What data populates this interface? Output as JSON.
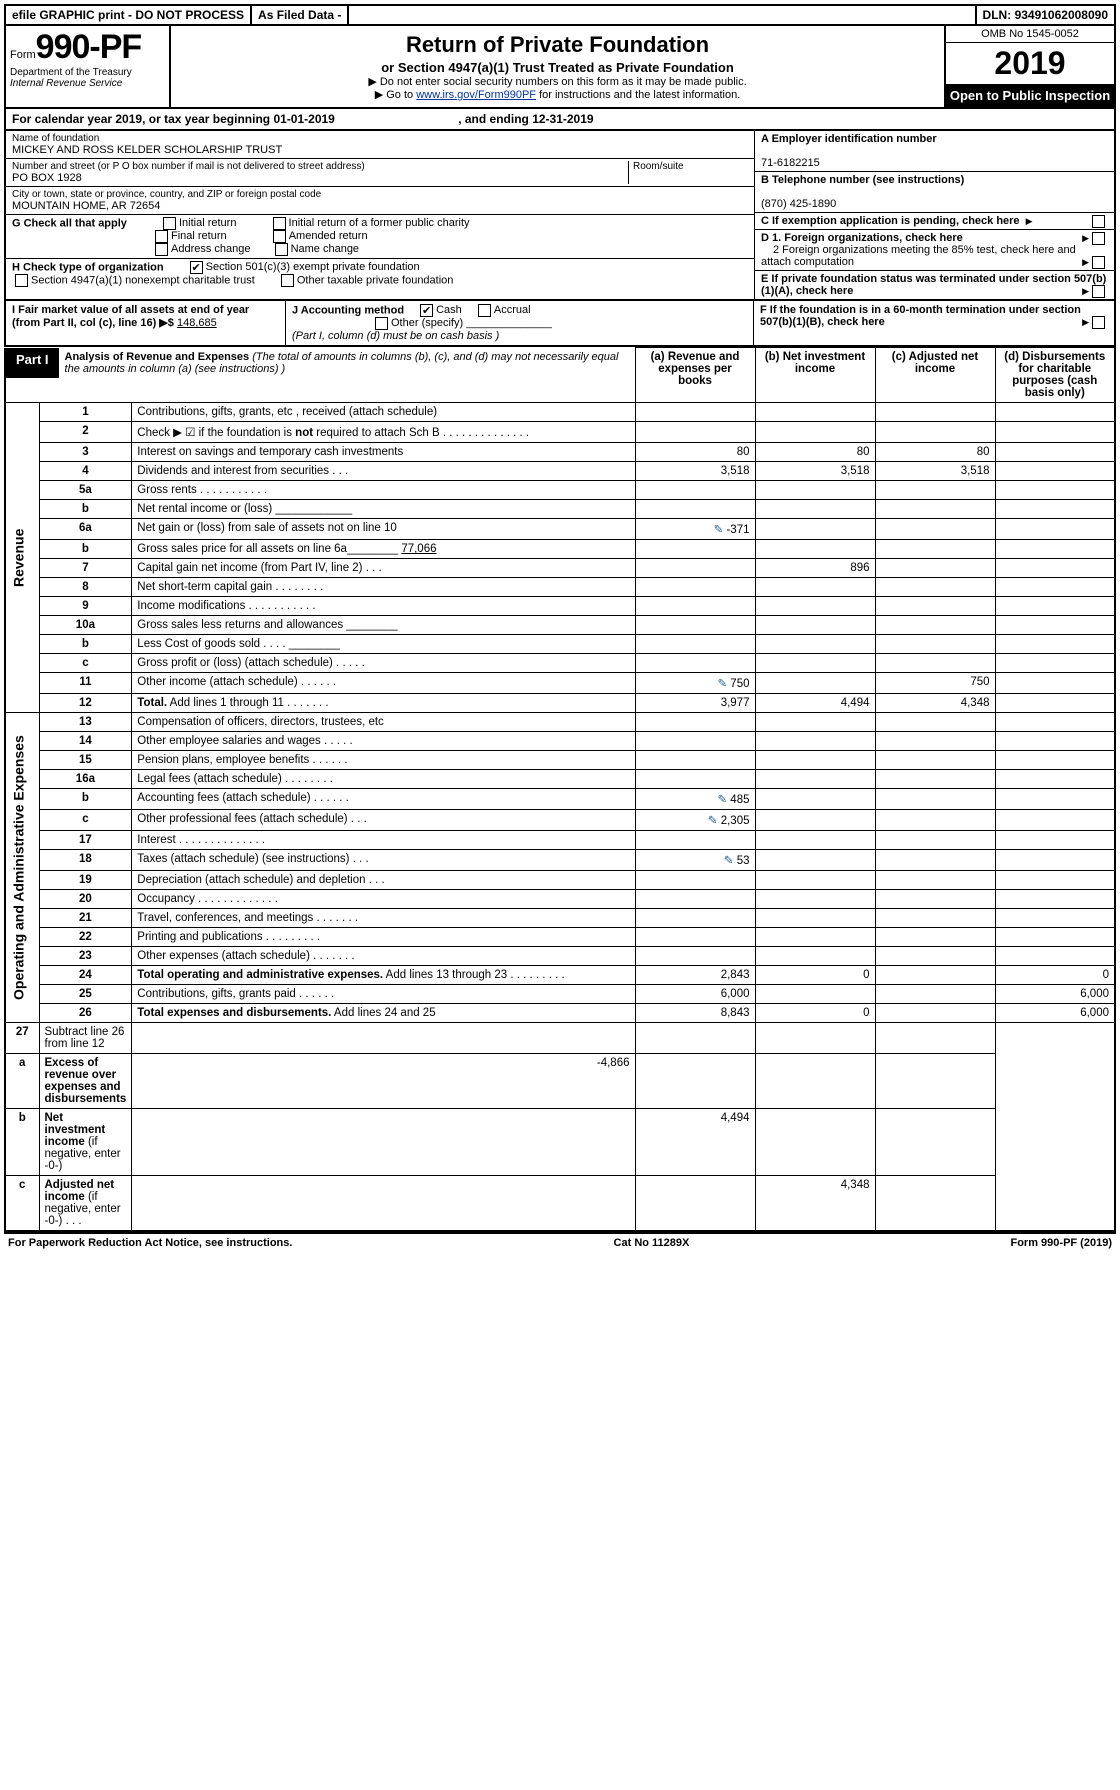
{
  "topbar": {
    "efile": "efile GRAPHIC print - DO NOT PROCESS",
    "asfiled": "As Filed Data -",
    "dln_lbl": "DLN:",
    "dln": "93491062008090"
  },
  "header": {
    "form_prefix": "Form",
    "form_no": "990-PF",
    "dept": "Department of the Treasury",
    "irs": "Internal Revenue Service",
    "title": "Return of Private Foundation",
    "subtitle": "or Section 4947(a)(1) Trust Treated as Private Foundation",
    "note1": "▶ Do not enter social security numbers on this form as it may be made public.",
    "note2_pre": "▶ Go to ",
    "note2_link": "www.irs.gov/Form990PF",
    "note2_post": " for instructions and the latest information.",
    "omb": "OMB No 1545-0052",
    "year": "2019",
    "open": "Open to Public Inspection"
  },
  "cyline": {
    "pre": "For calendar year 2019, or tax year beginning ",
    "begin": "01-01-2019",
    "mid": " , and ending ",
    "end": "12-31-2019"
  },
  "info": {
    "name_lbl": "Name of foundation",
    "name": "MICKEY AND ROSS KELDER SCHOLARSHIP TRUST",
    "addr_lbl": "Number and street (or P O  box number if mail is not delivered to street address)",
    "addr": "PO BOX 1928",
    "room_lbl": "Room/suite",
    "city_lbl": "City or town, state or province, country, and ZIP or foreign postal code",
    "city": "MOUNTAIN HOME, AR  72654",
    "A_lbl": "A Employer identification number",
    "A_val": "71-6182215",
    "B_lbl": "B Telephone number (see instructions)",
    "B_val": "(870) 425-1890",
    "C_lbl": "C If exemption application is pending, check here",
    "G_lbl": "G Check all that apply",
    "G_opts": [
      "Initial return",
      "Initial return of a former public charity",
      "Final return",
      "Amended return",
      "Address change",
      "Name change"
    ],
    "H_lbl": "H Check type of organization",
    "H_1": "Section 501(c)(3) exempt private foundation",
    "H_2": "Section 4947(a)(1) nonexempt charitable trust",
    "H_3": "Other taxable private foundation",
    "D1": "D 1. Foreign organizations, check here",
    "D2": "2 Foreign organizations meeting the 85% test, check here and attach computation",
    "E": "E  If private foundation status was terminated under section 507(b)(1)(A), check here",
    "F": "F  If the foundation is in a 60-month termination under section 507(b)(1)(B), check here",
    "I_lbl": "I Fair market value of all assets at end of year (from Part II, col  (c), line 16) ▶$ ",
    "I_val": "148,685",
    "J_lbl": "J Accounting method",
    "J_cash": "Cash",
    "J_accrual": "Accrual",
    "J_other": "Other (specify)",
    "J_note": "(Part I, column (d) must be on cash basis )"
  },
  "part1": {
    "tag": "Part I",
    "title": "Analysis of Revenue and Expenses",
    "note": " (The total of amounts in columns (b), (c), and (d) may not necessarily equal the amounts in column (a) (see instructions) )",
    "cols": {
      "a": "(a) Revenue and expenses per books",
      "b": "(b) Net investment income",
      "c": "(c) Adjusted net income",
      "d": "(d) Disbursements for charitable purposes (cash basis only)"
    }
  },
  "revenue_side": "Revenue",
  "expenses_side": "Operating and Administrative Expenses",
  "rows": [
    {
      "ln": "1",
      "desc": "Contributions, gifts, grants, etc , received (attach schedule)"
    },
    {
      "ln": "2",
      "desc": "Check ▶ ☑ if the foundation is <b>not</b> required to attach Sch  B  .  .  .  .  .  .  .  .  .  .  .  .  .  ."
    },
    {
      "ln": "3",
      "desc": "Interest on savings and temporary cash investments",
      "a": "80",
      "b": "80",
      "c": "80"
    },
    {
      "ln": "4",
      "desc": "Dividends and interest from securities  .  .  .",
      "a": "3,518",
      "b": "3,518",
      "c": "3,518"
    },
    {
      "ln": "5a",
      "desc": "Gross rents  .  .  .  .  .  .  .  .  .  .  ."
    },
    {
      "ln": "b",
      "desc": "Net rental income or (loss) ____________"
    },
    {
      "ln": "6a",
      "desc": "Net gain or (loss) from sale of assets not on line 10",
      "icon": true,
      "a": "-371"
    },
    {
      "ln": "b",
      "desc": "Gross sales price for all assets on line 6a________ <u>77,066</u>"
    },
    {
      "ln": "7",
      "desc": "Capital gain net income (from Part IV, line 2)  .  .  .",
      "b": "896"
    },
    {
      "ln": "8",
      "desc": "Net short-term capital gain  .  .  .  .  .  .  .  ."
    },
    {
      "ln": "9",
      "desc": "Income modifications .  .  .  .  .  .  .  .  .  .  ."
    },
    {
      "ln": "10a",
      "desc": "Gross sales less returns and allowances ________"
    },
    {
      "ln": "b",
      "desc": "Less  Cost of goods sold  .  .  .  . ________"
    },
    {
      "ln": "c",
      "desc": "Gross profit or (loss) (attach schedule)  .  .  .  .  ."
    },
    {
      "ln": "11",
      "desc": "Other income (attach schedule)  .  .  .  .  .  .",
      "icon": true,
      "a": "750",
      "c": "750"
    },
    {
      "ln": "12",
      "desc": "<b>Total.</b> Add lines 1 through 11  .  .  .  .  .  .  .",
      "a": "3,977",
      "b": "4,494",
      "c": "4,348"
    }
  ],
  "exp_rows": [
    {
      "ln": "13",
      "desc": "Compensation of officers, directors, trustees, etc"
    },
    {
      "ln": "14",
      "desc": "Other employee salaries and wages  .  .  .  .  ."
    },
    {
      "ln": "15",
      "desc": "Pension plans, employee benefits  .  .  .  .  .  ."
    },
    {
      "ln": "16a",
      "desc": "Legal fees (attach schedule) .  .  .  .  .  .  .  ."
    },
    {
      "ln": "b",
      "desc": "Accounting fees (attach schedule) .  .  .  .  .  .",
      "icon": true,
      "a": "485"
    },
    {
      "ln": "c",
      "desc": "Other professional fees (attach schedule)  .  .  .",
      "icon": true,
      "a": "2,305"
    },
    {
      "ln": "17",
      "desc": "Interest .  .  .  .  .  .  .  .  .  .  .  .  .  ."
    },
    {
      "ln": "18",
      "desc": "Taxes (attach schedule) (see instructions)  .  .  .",
      "icon": true,
      "a": "53"
    },
    {
      "ln": "19",
      "desc": "Depreciation (attach schedule) and depletion  .  .  ."
    },
    {
      "ln": "20",
      "desc": "Occupancy  .  .  .  .  .  .  .  .  .  .  .  .  ."
    },
    {
      "ln": "21",
      "desc": "Travel, conferences, and meetings .  .  .  .  .  .  ."
    },
    {
      "ln": "22",
      "desc": "Printing and publications .  .  .  .  .  .  .  .  ."
    },
    {
      "ln": "23",
      "desc": "Other expenses (attach schedule) .  .  .  .  .  .  ."
    },
    {
      "ln": "24",
      "desc": "<b>Total operating and administrative expenses.</b> Add lines 13 through 23  .  .  .  .  .  .  .  .  .",
      "a": "2,843",
      "b": "0",
      "d": "0"
    },
    {
      "ln": "25",
      "desc": "Contributions, gifts, grants paid  .  .  .  .  .  .",
      "a": "6,000",
      "d": "6,000"
    },
    {
      "ln": "26",
      "desc": "<b>Total expenses and disbursements.</b> Add lines 24 and 25",
      "a": "8,843",
      "b": "0",
      "d": "6,000"
    }
  ],
  "bottom_rows": [
    {
      "ln": "27",
      "desc": "Subtract line 26 from line 12"
    },
    {
      "ln": "a",
      "desc": "<b>Excess of revenue over expenses and disbursements</b>",
      "a": "-4,866"
    },
    {
      "ln": "b",
      "desc": "<b>Net investment income</b> (if negative, enter -0-)",
      "b": "4,494"
    },
    {
      "ln": "c",
      "desc": "<b>Adjusted net income</b> (if negative, enter -0-)  .  .  .",
      "c": "4,348"
    }
  ],
  "footer": {
    "left": "For Paperwork Reduction Act Notice, see instructions.",
    "mid": "Cat  No  11289X",
    "right": "Form 990-PF (2019)"
  }
}
